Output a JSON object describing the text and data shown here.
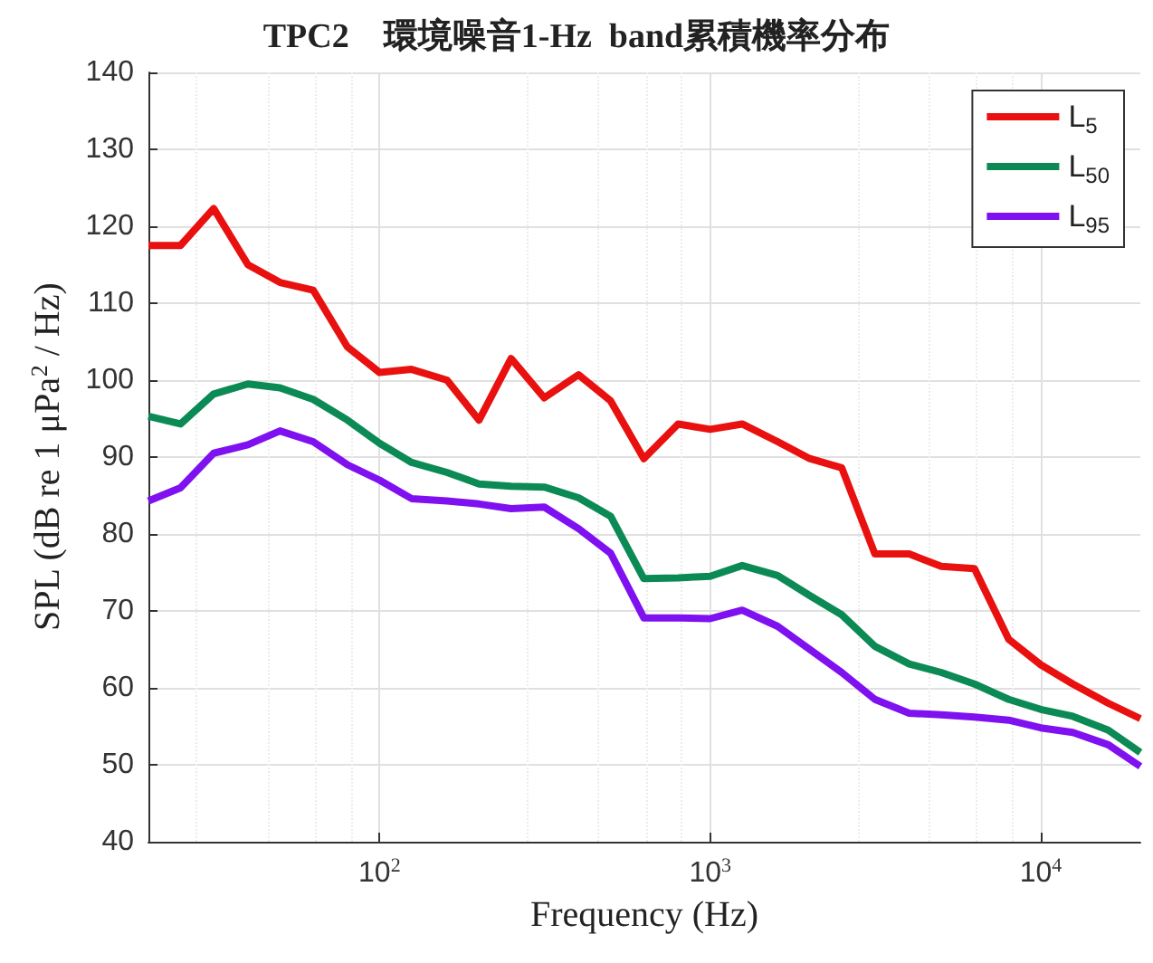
{
  "chart_data": {
    "type": "line",
    "title": "TPC2    環境噪音1-Hz  band累積機率分布",
    "xlabel": "Frequency (Hz)",
    "ylabel": "SPL (dB re 1 μPa$^{2}$ / Hz)",
    "x": [
      20,
      25,
      31.5,
      40,
      50,
      63,
      80,
      100,
      125,
      160,
      200,
      250,
      315,
      400,
      500,
      630,
      800,
      1000,
      1250,
      1600,
      2000,
      2500,
      3150,
      4000,
      5000,
      6300,
      8000,
      10000,
      12500,
      16000,
      20000
    ],
    "series": [
      {
        "name": "L$_{5}$",
        "color": "#e8110f",
        "values": [
          117.5,
          117.5,
          122.3,
          115,
          112.7,
          111.7,
          104.3,
          101,
          101.4,
          100,
          94.8,
          102.8,
          97.7,
          100.7,
          97.3,
          89.8,
          94.3,
          93.6,
          94.3,
          92,
          89.8,
          88.6,
          77.4,
          77.4,
          75.8,
          75.5,
          66.3,
          63,
          60.5,
          58,
          56
        ]
      },
      {
        "name": "L$_{50}$",
        "color": "#0b8a55",
        "values": [
          95.3,
          94.3,
          98.2,
          99.5,
          99,
          97.5,
          94.8,
          91.8,
          89.3,
          88,
          86.5,
          86.2,
          86.1,
          84.7,
          82.3,
          74.2,
          74.3,
          74.5,
          75.9,
          74.6,
          72,
          69.5,
          65.4,
          63.1,
          62,
          60.5,
          58.5,
          57.2,
          56.3,
          54.5,
          51.6
        ]
      },
      {
        "name": "L$_{95}$",
        "color": "#7f10f0",
        "values": [
          84.3,
          86,
          90.5,
          91.6,
          93.4,
          92,
          89,
          87,
          84.6,
          84.3,
          83.9,
          83.3,
          83.5,
          80.7,
          77.5,
          69.1,
          69.1,
          69,
          70.1,
          68,
          65,
          62,
          58.5,
          56.7,
          56.5,
          56.2,
          55.8,
          54.8,
          54.2,
          52.6,
          49.8
        ]
      }
    ],
    "log": "x",
    "xlim": [
      20,
      20000
    ],
    "xticks": [
      {
        "value": 100,
        "label": "10$^{2}$"
      },
      {
        "value": 1000,
        "label": "10$^{3}$"
      },
      {
        "value": 10000,
        "label": "10$^{4}$"
      }
    ],
    "ylim": [
      40,
      140
    ],
    "yticks": [
      40,
      50,
      60,
      70,
      80,
      90,
      100,
      110,
      120,
      130,
      140
    ],
    "grid": true,
    "legend": "top right",
    "marker": "none",
    "line_style": "solid"
  }
}
